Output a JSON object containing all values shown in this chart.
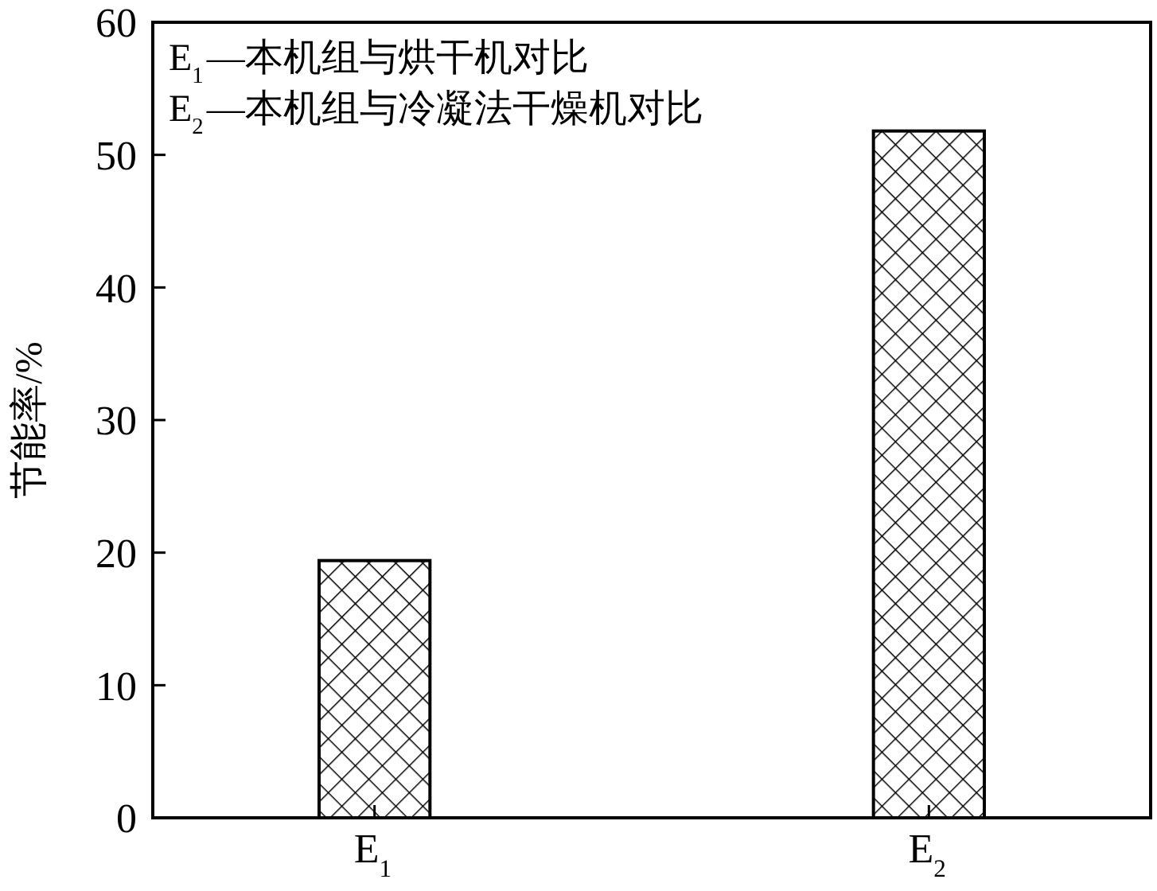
{
  "chart_data": {
    "type": "bar",
    "ylabel": "节能率/%",
    "categories": [
      "E$_{1}$",
      "E$_{2}$"
    ],
    "values": [
      19.4,
      51.8
    ],
    "color": "#000000",
    "ylim": [
      0,
      60
    ],
    "yticks": [
      0,
      10,
      20,
      30,
      40,
      50,
      60
    ],
    "grid": false,
    "annotations": [
      "E$_{1}$—本机组与烘干机对比",
      "E$_{2}$—本机组与冷凝法干燥机对比"
    ]
  }
}
